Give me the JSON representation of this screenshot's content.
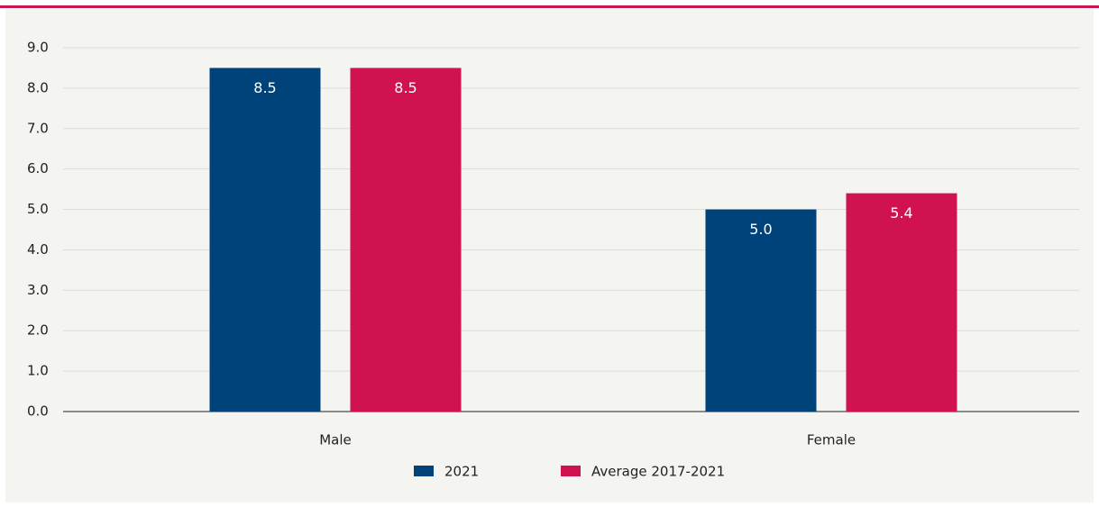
{
  "chart_data": {
    "type": "bar",
    "categories": [
      "Male",
      "Female"
    ],
    "series": [
      {
        "name": "2021",
        "color": "#00427a",
        "values": [
          8.5,
          5.0
        ],
        "value_labels": [
          "8.5",
          "5.0"
        ]
      },
      {
        "name": "Average 2017-2021",
        "color": "#d01350",
        "values": [
          8.5,
          5.4
        ],
        "value_labels": [
          "8.5",
          "5.4"
        ]
      }
    ],
    "ylim": [
      0,
      9
    ],
    "yticks": [
      {
        "value": 0,
        "label": "0.0"
      },
      {
        "value": 1,
        "label": "1.0"
      },
      {
        "value": 2,
        "label": "2.0"
      },
      {
        "value": 3,
        "label": "3.0"
      },
      {
        "value": 4,
        "label": "4.0"
      },
      {
        "value": 5,
        "label": "5.0"
      },
      {
        "value": 6,
        "label": "6.0"
      },
      {
        "value": 7,
        "label": "7.0"
      },
      {
        "value": 8,
        "label": "8.0"
      },
      {
        "value": 9,
        "label": "9.0"
      }
    ],
    "grid": true,
    "legend": "bottom"
  }
}
